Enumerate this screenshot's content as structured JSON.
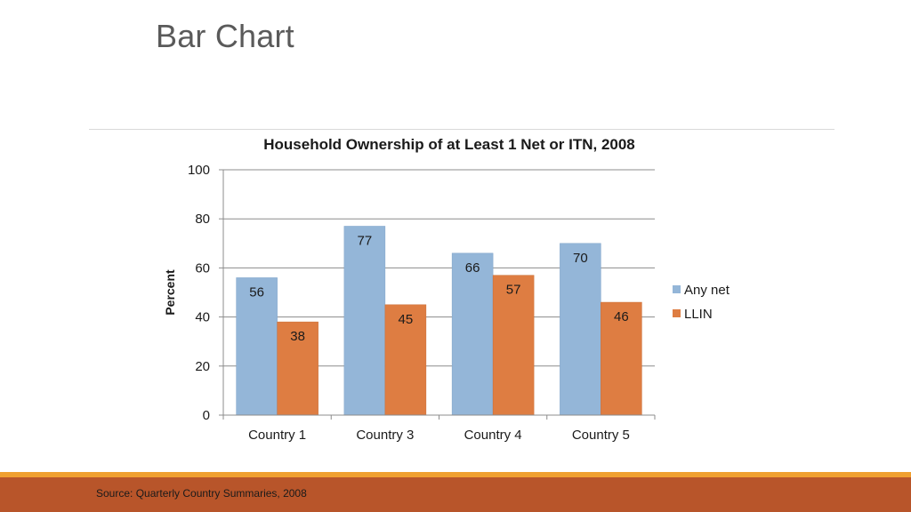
{
  "slide": {
    "title": "Bar Chart",
    "source": "Source: Quarterly Country Summaries, 2008"
  },
  "colors": {
    "any_net": "#94b6d8",
    "llin": "#de7d42",
    "grid": "#8c8c8c",
    "footer": "#b8552a",
    "footer_accent": "#f0a030"
  },
  "chart_data": {
    "type": "bar",
    "title": "Household Ownership of at Least 1 Net or ITN, 2008",
    "xlabel": "",
    "ylabel": "Percent",
    "ylim": [
      0,
      100
    ],
    "yticks": [
      0,
      20,
      40,
      60,
      80,
      100
    ],
    "categories": [
      "Country 1",
      "Country 3",
      "Country 4",
      "Country 5"
    ],
    "series": [
      {
        "name": "Any net",
        "values": [
          56,
          77,
          66,
          70
        ]
      },
      {
        "name": "LLIN",
        "values": [
          38,
          45,
          57,
          46
        ]
      }
    ],
    "legend_position": "right",
    "grid": true
  }
}
